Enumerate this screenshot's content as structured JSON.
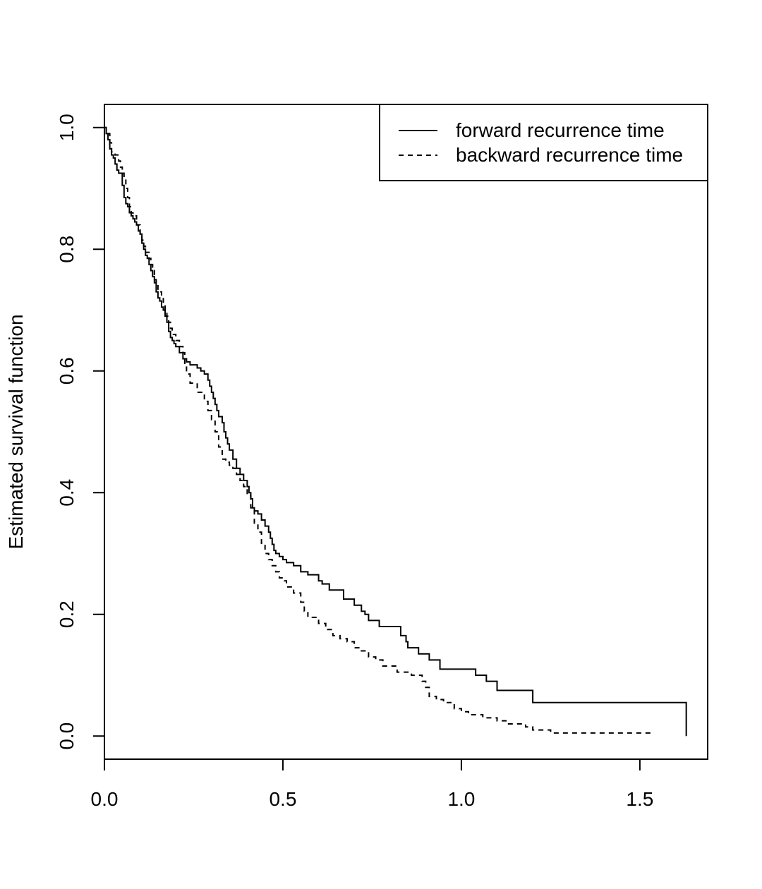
{
  "chart_data": {
    "type": "line",
    "ylabel": "Estimated survival function",
    "xlabel": "",
    "xlim": [
      0,
      1.69
    ],
    "ylim": [
      -0.038,
      1.038
    ],
    "xticks": [
      "0.0",
      "0.5",
      "1.0",
      "1.5"
    ],
    "xtick_values": [
      0,
      0.5,
      1.0,
      1.5
    ],
    "yticks": [
      "0.0",
      "0.2",
      "0.4",
      "0.6",
      "0.8",
      "1.0"
    ],
    "ytick_values": [
      0,
      0.2,
      0.4,
      0.6,
      0.8,
      1.0
    ],
    "legend_position": "top-right",
    "step": true,
    "series": [
      {
        "name": "forward recurrence time",
        "style": "solid",
        "x": [
          0,
          0.005,
          0.01,
          0.015,
          0.02,
          0.025,
          0.03,
          0.035,
          0.04,
          0.05,
          0.055,
          0.06,
          0.065,
          0.07,
          0.075,
          0.08,
          0.085,
          0.09,
          0.095,
          0.1,
          0.105,
          0.11,
          0.115,
          0.12,
          0.125,
          0.13,
          0.135,
          0.14,
          0.145,
          0.15,
          0.155,
          0.16,
          0.165,
          0.17,
          0.175,
          0.18,
          0.185,
          0.19,
          0.195,
          0.2,
          0.21,
          0.22,
          0.23,
          0.24,
          0.26,
          0.27,
          0.28,
          0.29,
          0.295,
          0.3,
          0.305,
          0.31,
          0.315,
          0.32,
          0.33,
          0.335,
          0.34,
          0.345,
          0.35,
          0.36,
          0.37,
          0.38,
          0.39,
          0.4,
          0.405,
          0.41,
          0.415,
          0.42,
          0.43,
          0.44,
          0.45,
          0.46,
          0.465,
          0.47,
          0.475,
          0.48,
          0.49,
          0.5,
          0.51,
          0.53,
          0.55,
          0.57,
          0.6,
          0.61,
          0.63,
          0.67,
          0.7,
          0.72,
          0.73,
          0.74,
          0.77,
          0.83,
          0.845,
          0.85,
          0.88,
          0.91,
          0.94,
          1.04,
          1.07,
          1.1,
          1.2,
          1.63
        ],
        "y": [
          1.0,
          0.99,
          0.98,
          0.965,
          0.955,
          0.95,
          0.94,
          0.93,
          0.925,
          0.905,
          0.885,
          0.875,
          0.87,
          0.86,
          0.855,
          0.85,
          0.845,
          0.84,
          0.83,
          0.825,
          0.81,
          0.8,
          0.79,
          0.785,
          0.775,
          0.765,
          0.755,
          0.745,
          0.73,
          0.72,
          0.715,
          0.705,
          0.7,
          0.69,
          0.68,
          0.665,
          0.655,
          0.65,
          0.645,
          0.64,
          0.63,
          0.62,
          0.615,
          0.61,
          0.605,
          0.6,
          0.595,
          0.585,
          0.575,
          0.565,
          0.555,
          0.545,
          0.535,
          0.525,
          0.515,
          0.5,
          0.49,
          0.48,
          0.47,
          0.455,
          0.44,
          0.43,
          0.42,
          0.41,
          0.4,
          0.39,
          0.375,
          0.37,
          0.365,
          0.355,
          0.345,
          0.335,
          0.325,
          0.315,
          0.305,
          0.3,
          0.295,
          0.29,
          0.285,
          0.28,
          0.27,
          0.265,
          0.255,
          0.25,
          0.24,
          0.225,
          0.215,
          0.205,
          0.2,
          0.19,
          0.18,
          0.165,
          0.155,
          0.145,
          0.135,
          0.125,
          0.11,
          0.1,
          0.09,
          0.075,
          0.055,
          0.0
        ]
      },
      {
        "name": "backward recurrence time",
        "style": "dashed",
        "x": [
          0,
          0.005,
          0.015,
          0.02,
          0.03,
          0.04,
          0.045,
          0.05,
          0.055,
          0.06,
          0.065,
          0.07,
          0.075,
          0.08,
          0.09,
          0.1,
          0.105,
          0.11,
          0.115,
          0.125,
          0.13,
          0.135,
          0.14,
          0.145,
          0.15,
          0.16,
          0.165,
          0.17,
          0.175,
          0.18,
          0.185,
          0.19,
          0.2,
          0.21,
          0.22,
          0.225,
          0.23,
          0.24,
          0.26,
          0.28,
          0.29,
          0.3,
          0.31,
          0.32,
          0.33,
          0.34,
          0.35,
          0.36,
          0.37,
          0.38,
          0.39,
          0.4,
          0.41,
          0.42,
          0.43,
          0.44,
          0.45,
          0.46,
          0.47,
          0.48,
          0.49,
          0.5,
          0.51,
          0.53,
          0.55,
          0.56,
          0.57,
          0.6,
          0.62,
          0.64,
          0.66,
          0.68,
          0.7,
          0.72,
          0.74,
          0.76,
          0.78,
          0.82,
          0.86,
          0.89,
          0.9,
          0.91,
          0.93,
          0.95,
          0.98,
          1.0,
          1.02,
          1.06,
          1.1,
          1.13,
          1.18,
          1.2,
          1.25,
          1.53
        ],
        "y": [
          1.0,
          0.99,
          0.975,
          0.96,
          0.955,
          0.945,
          0.935,
          0.925,
          0.915,
          0.9,
          0.885,
          0.87,
          0.86,
          0.855,
          0.84,
          0.825,
          0.815,
          0.805,
          0.795,
          0.785,
          0.775,
          0.765,
          0.75,
          0.74,
          0.73,
          0.72,
          0.71,
          0.7,
          0.69,
          0.68,
          0.67,
          0.66,
          0.65,
          0.64,
          0.63,
          0.61,
          0.595,
          0.58,
          0.565,
          0.55,
          0.535,
          0.52,
          0.5,
          0.475,
          0.455,
          0.45,
          0.445,
          0.44,
          0.43,
          0.42,
          0.41,
          0.395,
          0.375,
          0.35,
          0.335,
          0.315,
          0.3,
          0.29,
          0.28,
          0.27,
          0.26,
          0.255,
          0.245,
          0.235,
          0.22,
          0.205,
          0.195,
          0.185,
          0.175,
          0.165,
          0.16,
          0.155,
          0.145,
          0.14,
          0.13,
          0.125,
          0.115,
          0.105,
          0.1,
          0.09,
          0.08,
          0.065,
          0.06,
          0.055,
          0.045,
          0.04,
          0.035,
          0.03,
          0.025,
          0.02,
          0.015,
          0.01,
          0.005,
          0.0
        ]
      }
    ]
  }
}
